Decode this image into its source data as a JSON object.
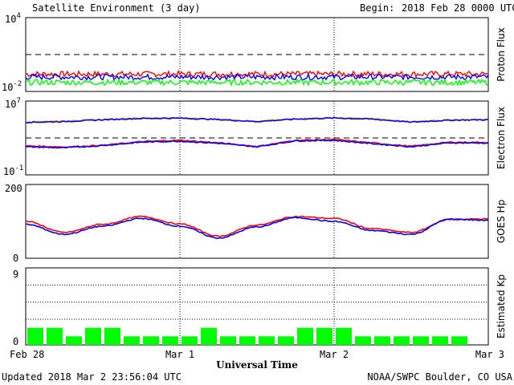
{
  "header": {
    "title": "Satellite Environment (3 day)",
    "begin_label": "Begin:",
    "begin_value": "2018 Feb 28 0000 UTC"
  },
  "footer": {
    "updated": "Updated 2018 Mar  2 23:56:04 UTC",
    "credit": "NOAA/SWPC Boulder, CO USA"
  },
  "colors": {
    "red": "#ff0000",
    "blue": "#0000ff",
    "green": "#00ff00",
    "orange": "#ffa500",
    "black": "#000000"
  },
  "chart_data": [
    {
      "type": "line",
      "panel": "proton-flux",
      "ylabel": "Proton Flux",
      "yscale": "log",
      "ylim": [
        0.01,
        10000
      ],
      "tick_labels": [
        {
          "base": "10",
          "exp": "4"
        },
        {
          "base": "10",
          "exp": "-2"
        }
      ],
      "threshold": 10,
      "x": [
        0,
        1,
        2,
        3
      ],
      "series": [
        {
          "color": "#ff0000",
          "values": [
            0.26,
            0.26,
            0.26,
            0.26
          ]
        },
        {
          "color": "#0000ff",
          "values": [
            0.15,
            0.15,
            0.15,
            0.15
          ]
        },
        {
          "color": "#00ff00",
          "values": [
            0.055,
            0.055,
            0.055,
            0.055
          ]
        }
      ]
    },
    {
      "type": "line",
      "panel": "electron-flux",
      "ylabel": "Electron Flux",
      "yscale": "log",
      "ylim": [
        0.1,
        10000000
      ],
      "tick_labels": [
        {
          "base": "10",
          "exp": "7"
        },
        {
          "base": "10",
          "exp": "-1"
        }
      ],
      "threshold": 1000,
      "x": [
        0,
        0.25,
        0.5,
        0.75,
        1.0,
        1.25,
        1.5,
        1.75,
        2.0,
        2.25,
        2.5,
        2.75,
        3.0
      ],
      "series": [
        {
          "color": "#ffa500",
          "values": [
            52000,
            65000,
            100000,
            140000,
            150000,
            105000,
            62000,
            120000,
            155000,
            120000,
            55000,
            90000,
            105000
          ]
        },
        {
          "color": "#0000ff",
          "values": [
            50000,
            60000,
            95000,
            130000,
            140000,
            100000,
            60000,
            110000,
            145000,
            110000,
            52000,
            85000,
            95000
          ]
        },
        {
          "color": "#ff0000",
          "values": [
            140,
            105,
            160,
            400,
            570,
            300,
            120,
            560,
            690,
            290,
            125,
            350,
            330
          ]
        },
        {
          "color": "#0000ff",
          "values": [
            110,
            85,
            150,
            350,
            450,
            260,
            110,
            490,
            550,
            240,
            110,
            300,
            280
          ]
        }
      ]
    },
    {
      "type": "line",
      "panel": "goes-hp",
      "ylabel": "GOES Hp",
      "ylim": [
        0,
        200
      ],
      "tick_labels": [
        "200",
        "0"
      ],
      "x": [
        0,
        0.25,
        0.5,
        0.75,
        1.0,
        1.25,
        1.5,
        1.75,
        2.0,
        2.25,
        2.5,
        2.75,
        3.0
      ],
      "series": [
        {
          "color": "#ff0000",
          "values": [
            100,
            70,
            92,
            113,
            93,
            60,
            90,
            113,
            108,
            80,
            70,
            105,
            107
          ]
        },
        {
          "color": "#0000ff",
          "values": [
            92,
            65,
            87,
            108,
            87,
            55,
            85,
            110,
            100,
            75,
            65,
            106,
            103
          ]
        }
      ]
    },
    {
      "type": "bar",
      "panel": "estimated-kp",
      "ylabel": "Estimated Kp",
      "ylim": [
        0,
        9
      ],
      "tick_labels": [
        "9",
        "0"
      ],
      "values": [
        2,
        2,
        1,
        2,
        2,
        1,
        1,
        1,
        1,
        2,
        1,
        1,
        1,
        1,
        2,
        2,
        2,
        1,
        1,
        1,
        1,
        1,
        1
      ],
      "color": "#00ff00"
    }
  ],
  "x_axis": {
    "label": "Universal Time",
    "ticks": [
      "Feb 28",
      "Mar 1",
      "Mar 2",
      "Mar 3"
    ]
  }
}
